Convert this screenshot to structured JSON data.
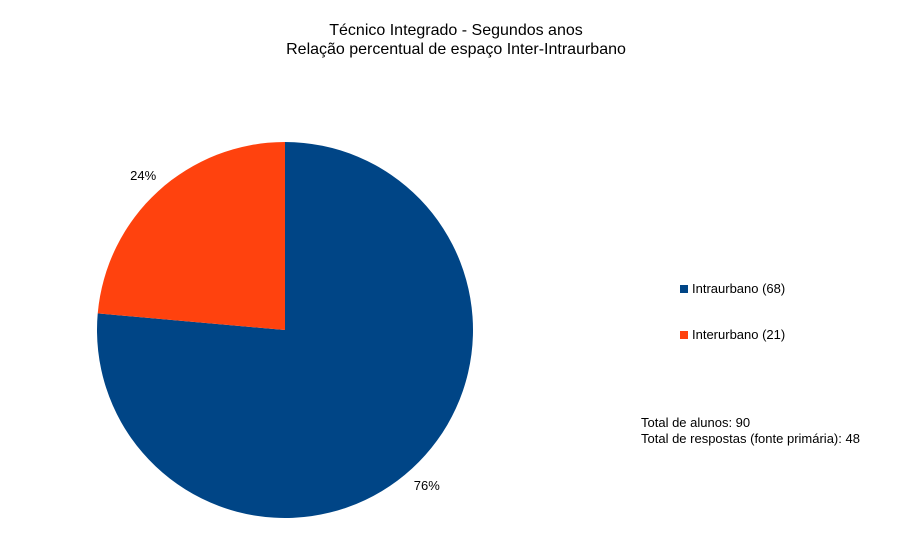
{
  "chart_data": {
    "type": "pie",
    "title": "Técnico Integrado - Segundos anos",
    "subtitle": "Relação percentual de espaço Inter-Intraurbano",
    "slices": [
      {
        "label": "Intraurbano (68)",
        "count": 68,
        "percent_label": "76%",
        "color": "#004586"
      },
      {
        "label": "Interurbano (21)",
        "count": 21,
        "percent_label": "24%",
        "color": "#ff420e"
      }
    ],
    "legend_placement": "right",
    "notes": [
      "Total de alunos: 90",
      "Total de respostas (fonte primária): 48"
    ]
  }
}
